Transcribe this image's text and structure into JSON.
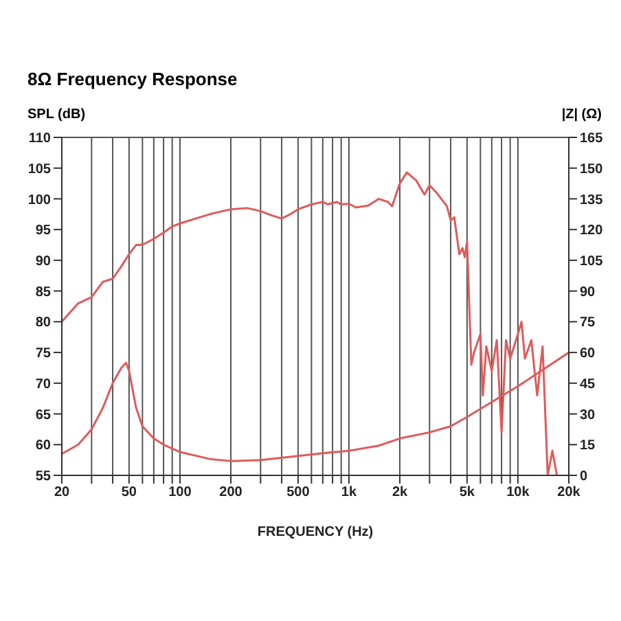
{
  "chart_data": {
    "type": "line",
    "title": "8Ω Frequency Response",
    "xlabel": "FREQUENCY (Hz)",
    "ylabel": "SPL (dB)",
    "y2label": "|Z| (Ω)",
    "log": "x",
    "grid": true,
    "marker": "none",
    "line_style": "solid",
    "xlim": [
      20,
      20000
    ],
    "ylim": [
      55,
      110
    ],
    "y2lim": [
      0,
      165
    ],
    "xticks": [
      20,
      {
        "value": 30,
        "label": null
      },
      {
        "value": 40,
        "label": null
      },
      50,
      {
        "value": 60,
        "label": null
      },
      {
        "value": 70,
        "label": null
      },
      {
        "value": 80,
        "label": null
      },
      {
        "value": 90,
        "label": null
      },
      100,
      200,
      {
        "value": 300,
        "label": null
      },
      {
        "value": 400,
        "label": null
      },
      500,
      {
        "value": 600,
        "label": null
      },
      {
        "value": 700,
        "label": null
      },
      {
        "value": 800,
        "label": null
      },
      {
        "value": 900,
        "label": null
      },
      {
        "value": 1000,
        "label": "1k"
      },
      {
        "value": 2000,
        "label": "2k"
      },
      {
        "value": 3000,
        "label": null
      },
      {
        "value": 4000,
        "label": null
      },
      {
        "value": 5000,
        "label": "5k"
      },
      {
        "value": 6000,
        "label": null
      },
      {
        "value": 7000,
        "label": null
      },
      {
        "value": 8000,
        "label": null
      },
      {
        "value": 9000,
        "label": null
      },
      {
        "value": 10000,
        "label": "10k"
      },
      {
        "value": 20000,
        "label": "20k"
      }
    ],
    "yticks": [
      55,
      60,
      65,
      70,
      75,
      80,
      85,
      90,
      95,
      100,
      105,
      110
    ],
    "y2ticks": [
      0,
      15,
      30,
      45,
      60,
      75,
      90,
      105,
      120,
      135,
      150,
      165
    ],
    "series": [
      {
        "color": "#e05a5a",
        "x": [
          20,
          25,
          30,
          35,
          40,
          45,
          50,
          55,
          60,
          70,
          80,
          90,
          100,
          150,
          200,
          250,
          300,
          350,
          400,
          450,
          500,
          600,
          700,
          750,
          850,
          900,
          1000,
          1100,
          1300,
          1500,
          1700,
          1800,
          2000,
          2200,
          2500,
          2800,
          3000,
          3300,
          3800,
          4000,
          4200,
          4500,
          4700,
          4850,
          5000,
          5300,
          5500,
          6000,
          6200,
          6500,
          7000,
          7500,
          8000,
          8500,
          9000,
          10000,
          10500,
          11000,
          12000,
          13000,
          14000,
          15000,
          16000,
          17000
        ],
        "values": [
          80,
          83,
          84,
          86.5,
          87,
          89,
          91,
          92.5,
          92.5,
          93.5,
          94.5,
          95.5,
          96,
          97.5,
          98.3,
          98.5,
          98,
          97.3,
          96.8,
          97.5,
          98.3,
          99.1,
          99.5,
          99.1,
          99.5,
          99.1,
          99.2,
          98.6,
          98.9,
          100,
          99.5,
          98.8,
          102.5,
          104.3,
          103,
          100.7,
          102.2,
          101,
          98.8,
          96.5,
          97,
          91,
          92,
          90.5,
          93,
          73,
          75,
          78,
          68,
          76,
          72,
          77,
          62,
          77,
          74,
          78,
          80,
          74,
          77,
          68,
          76,
          55,
          59,
          55
        ]
      },
      {
        "color": "#e05a5a",
        "axis": "y2",
        "x": [
          20,
          25,
          30,
          35,
          40,
          45,
          48,
          50,
          55,
          60,
          70,
          80,
          100,
          150,
          200,
          300,
          500,
          700,
          1000,
          1500,
          2000,
          3000,
          4000,
          5000,
          10000,
          20000
        ],
        "values": [
          10.5,
          15,
          22.5,
          33,
          45,
          52.5,
          55,
          51,
          33,
          24,
          18,
          15,
          11.4,
          8,
          7,
          7.5,
          9.5,
          10.8,
          12,
          14.5,
          18,
          21,
          24,
          28.5,
          43.5,
          60
        ]
      }
    ]
  }
}
